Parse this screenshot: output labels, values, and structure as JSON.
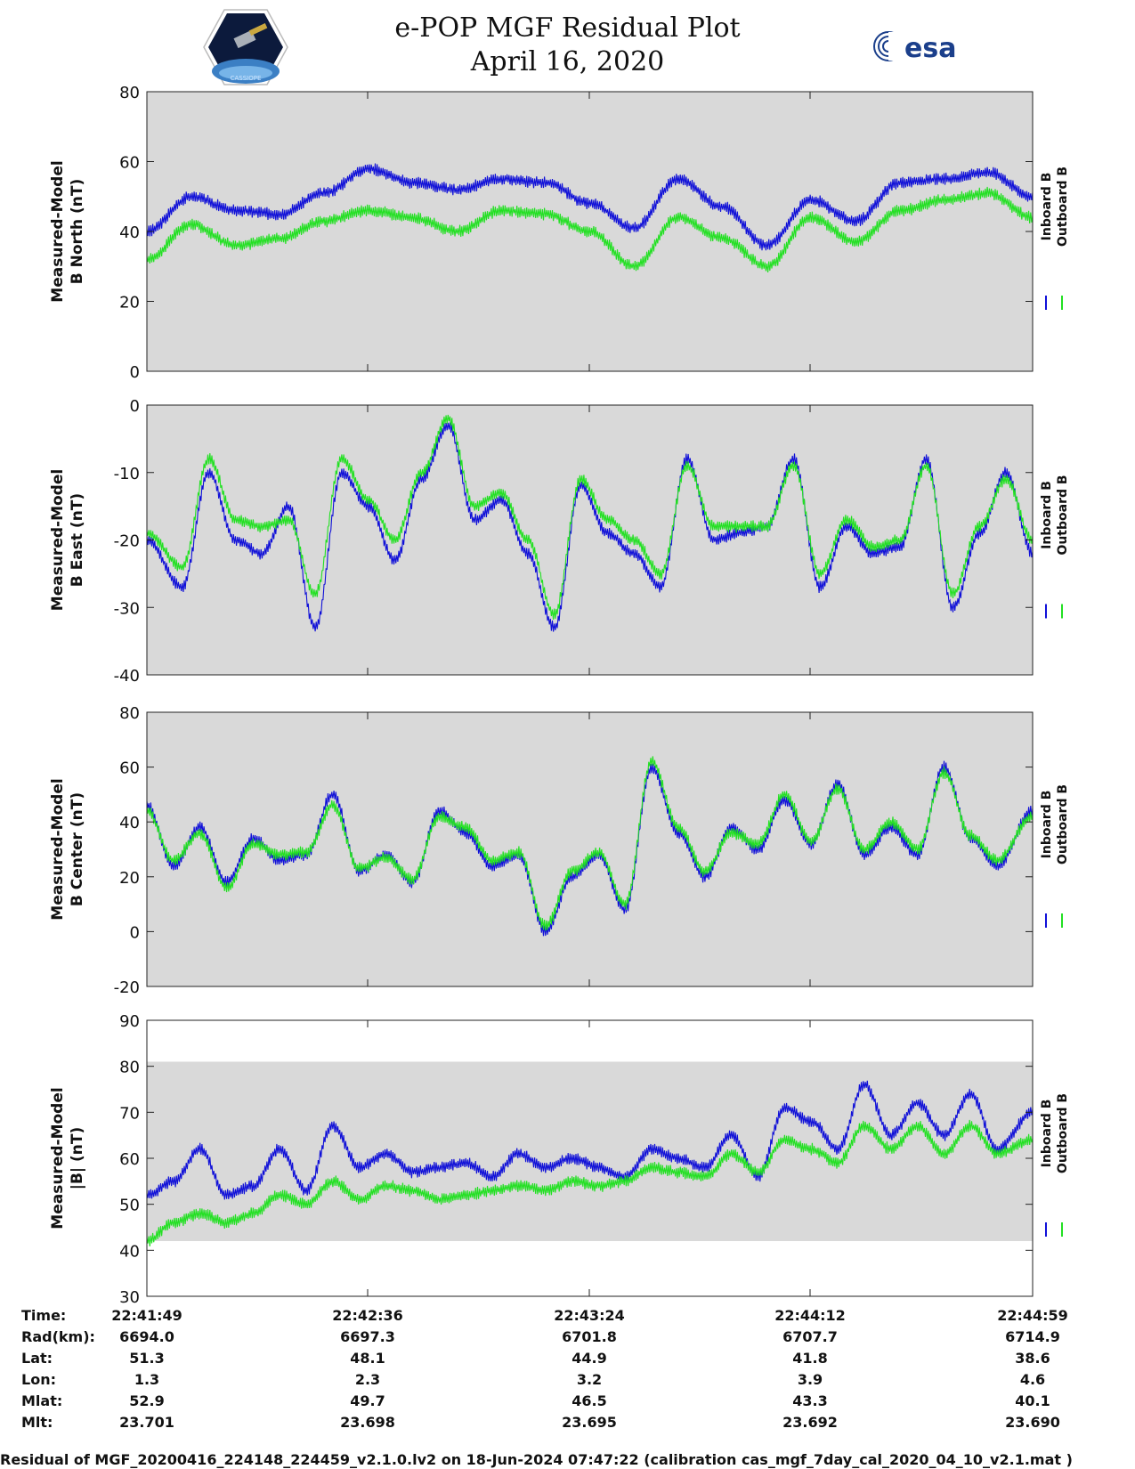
{
  "header": {
    "title_line1": "e-POP MGF Residual Plot",
    "title_line2": "April 16, 2020",
    "left_logo": "CASSIOPE",
    "right_logo": "esa"
  },
  "colors": {
    "inboard": "#1010d8",
    "outboard": "#22e022",
    "plot_bg": "#d9d9d9"
  },
  "chart_data": [
    {
      "type": "line",
      "ylabel_line1": "Measured-Model",
      "ylabel_line2": "B North (nT)",
      "ylim": [
        0,
        80
      ],
      "yticks": [
        0,
        20,
        40,
        60,
        80
      ],
      "ytick_labels": [
        "0",
        "20",
        "40",
        "60",
        "80"
      ],
      "legend": [
        "Inboard B",
        "Outboard B"
      ],
      "series": [
        {
          "name": "Inboard B",
          "x": [
            0,
            5,
            10,
            15,
            20,
            25,
            30,
            35,
            40,
            45,
            50,
            55,
            60,
            65,
            70,
            75,
            80,
            85,
            90,
            95,
            100
          ],
          "values": [
            40,
            50,
            46,
            45,
            51,
            58,
            54,
            52,
            55,
            54,
            48,
            41,
            55,
            47,
            36,
            49,
            43,
            54,
            55,
            57,
            50
          ]
        },
        {
          "name": "Outboard B",
          "x": [
            0,
            5,
            10,
            15,
            20,
            25,
            30,
            35,
            40,
            45,
            50,
            55,
            60,
            65,
            70,
            75,
            80,
            85,
            90,
            95,
            100
          ],
          "values": [
            32,
            42,
            36,
            38,
            43,
            46,
            44,
            40,
            46,
            45,
            40,
            30,
            44,
            38,
            30,
            44,
            37,
            46,
            49,
            51,
            44
          ]
        }
      ]
    },
    {
      "type": "line",
      "ylabel_line1": "Measured-Model",
      "ylabel_line2": "B East (nT)",
      "ylim": [
        -40,
        0
      ],
      "yticks": [
        -40,
        -30,
        -20,
        -10,
        0
      ],
      "ytick_labels": [
        "-40",
        "-30",
        "-20",
        "-10",
        "0"
      ],
      "legend": [
        "Inboard B",
        "Outboard B"
      ],
      "series": [
        {
          "name": "Inboard B",
          "x": [
            0,
            4,
            7,
            10,
            13,
            16,
            19,
            22,
            25,
            28,
            31,
            34,
            37,
            40,
            43,
            46,
            49,
            52,
            55,
            58,
            61,
            64,
            67,
            70,
            73,
            76,
            79,
            82,
            85,
            88,
            91,
            94,
            97,
            100
          ],
          "values": [
            -20,
            -27,
            -10,
            -20,
            -22,
            -15,
            -33,
            -10,
            -15,
            -23,
            -11,
            -3,
            -17,
            -14,
            -22,
            -33,
            -12,
            -19,
            -22,
            -27,
            -8,
            -20,
            -19,
            -18,
            -8,
            -27,
            -18,
            -22,
            -21,
            -8,
            -30,
            -19,
            -10,
            -22
          ]
        },
        {
          "name": "Outboard B",
          "x": [
            0,
            4,
            7,
            10,
            13,
            16,
            19,
            22,
            25,
            28,
            31,
            34,
            37,
            40,
            43,
            46,
            49,
            52,
            55,
            58,
            61,
            64,
            67,
            70,
            73,
            76,
            79,
            82,
            85,
            88,
            91,
            94,
            97,
            100
          ],
          "values": [
            -19,
            -24,
            -8,
            -17,
            -18,
            -17,
            -28,
            -8,
            -14,
            -20,
            -10,
            -2,
            -15,
            -13,
            -20,
            -31,
            -11,
            -17,
            -20,
            -25,
            -9,
            -18,
            -18,
            -18,
            -9,
            -25,
            -17,
            -21,
            -20,
            -9,
            -28,
            -18,
            -11,
            -20
          ]
        }
      ]
    },
    {
      "type": "line",
      "ylabel_line1": "Measured-Model",
      "ylabel_line2": "B Center (nT)",
      "ylim": [
        -20,
        80
      ],
      "yticks": [
        -20,
        0,
        20,
        40,
        60,
        80
      ],
      "ytick_labels": [
        "-20",
        "0",
        "20",
        "40",
        "60",
        "80"
      ],
      "legend": [
        "Inboard B",
        "Outboard B"
      ],
      "series": [
        {
          "name": "Inboard B",
          "x": [
            0,
            3,
            6,
            9,
            12,
            15,
            18,
            21,
            24,
            27,
            30,
            33,
            36,
            39,
            42,
            45,
            48,
            51,
            54,
            57,
            60,
            63,
            66,
            69,
            72,
            75,
            78,
            81,
            84,
            87,
            90,
            93,
            96,
            100
          ],
          "values": [
            46,
            24,
            38,
            18,
            34,
            26,
            28,
            50,
            22,
            28,
            18,
            44,
            36,
            24,
            28,
            0,
            20,
            28,
            8,
            60,
            36,
            20,
            38,
            30,
            48,
            32,
            54,
            28,
            38,
            28,
            60,
            34,
            24,
            44
          ]
        },
        {
          "name": "Outboard B",
          "x": [
            0,
            3,
            6,
            9,
            12,
            15,
            18,
            21,
            24,
            27,
            30,
            33,
            36,
            39,
            42,
            45,
            48,
            51,
            54,
            57,
            60,
            63,
            66,
            69,
            72,
            75,
            78,
            81,
            84,
            87,
            90,
            93,
            96,
            100
          ],
          "values": [
            44,
            26,
            36,
            16,
            32,
            28,
            29,
            46,
            23,
            27,
            19,
            42,
            38,
            26,
            29,
            2,
            22,
            29,
            10,
            62,
            38,
            22,
            36,
            32,
            50,
            33,
            52,
            30,
            40,
            30,
            58,
            35,
            26,
            42
          ]
        }
      ]
    },
    {
      "type": "line",
      "ylabel_line1": "Measured-Model",
      "ylabel_line2": "|B| (nT)",
      "ylim": [
        30,
        90
      ],
      "yticks": [
        30,
        40,
        50,
        60,
        70,
        80,
        90
      ],
      "ytick_labels": [
        "30",
        "40",
        "50",
        "60",
        "70",
        "80",
        "90"
      ],
      "legend": [
        "Inboard B",
        "Outboard B"
      ],
      "series": [
        {
          "name": "Inboard B",
          "x": [
            0,
            3,
            6,
            9,
            12,
            15,
            18,
            21,
            24,
            27,
            30,
            33,
            36,
            39,
            42,
            45,
            48,
            51,
            54,
            57,
            60,
            63,
            66,
            69,
            72,
            75,
            78,
            81,
            84,
            87,
            90,
            93,
            96,
            100
          ],
          "values": [
            52,
            55,
            62,
            52,
            54,
            62,
            53,
            67,
            58,
            61,
            57,
            58,
            59,
            56,
            61,
            58,
            60,
            58,
            56,
            62,
            60,
            58,
            65,
            56,
            71,
            68,
            62,
            76,
            65,
            72,
            65,
            74,
            62,
            70
          ]
        },
        {
          "name": "Outboard B",
          "x": [
            0,
            3,
            6,
            9,
            12,
            15,
            18,
            21,
            24,
            27,
            30,
            33,
            36,
            39,
            42,
            45,
            48,
            51,
            54,
            57,
            60,
            63,
            66,
            69,
            72,
            75,
            78,
            81,
            84,
            87,
            90,
            93,
            96,
            100
          ],
          "values": [
            42,
            46,
            48,
            46,
            48,
            52,
            50,
            55,
            51,
            54,
            53,
            51,
            52,
            53,
            54,
            53,
            55,
            54,
            55,
            58,
            57,
            56,
            61,
            57,
            64,
            62,
            59,
            67,
            62,
            67,
            61,
            67,
            61,
            64
          ]
        }
      ]
    }
  ],
  "info_table": {
    "row_labels": [
      "Time:",
      "Rad(km):",
      "Lat:",
      "Lon:",
      "Mlat:",
      "Mlt:"
    ],
    "columns": [
      [
        "22:41:49",
        "6694.0",
        "51.3",
        "1.3",
        "52.9",
        "23.701"
      ],
      [
        "22:42:36",
        "6697.3",
        "48.1",
        "2.3",
        "49.7",
        "23.698"
      ],
      [
        "22:43:24",
        "6701.8",
        "44.9",
        "3.2",
        "46.5",
        "23.695"
      ],
      [
        "22:44:12",
        "6707.7",
        "41.8",
        "3.9",
        "43.3",
        "23.692"
      ],
      [
        "22:44:59",
        "6714.9",
        "38.6",
        "4.6",
        "40.1",
        "23.690"
      ]
    ]
  },
  "footer": "Residual of MGF_20200416_224148_224459_v2.1.0.lv2 on 18-Jun-2024 07:47:22 (calibration cas_mgf_7day_cal_2020_04_10_v2.1.mat )"
}
